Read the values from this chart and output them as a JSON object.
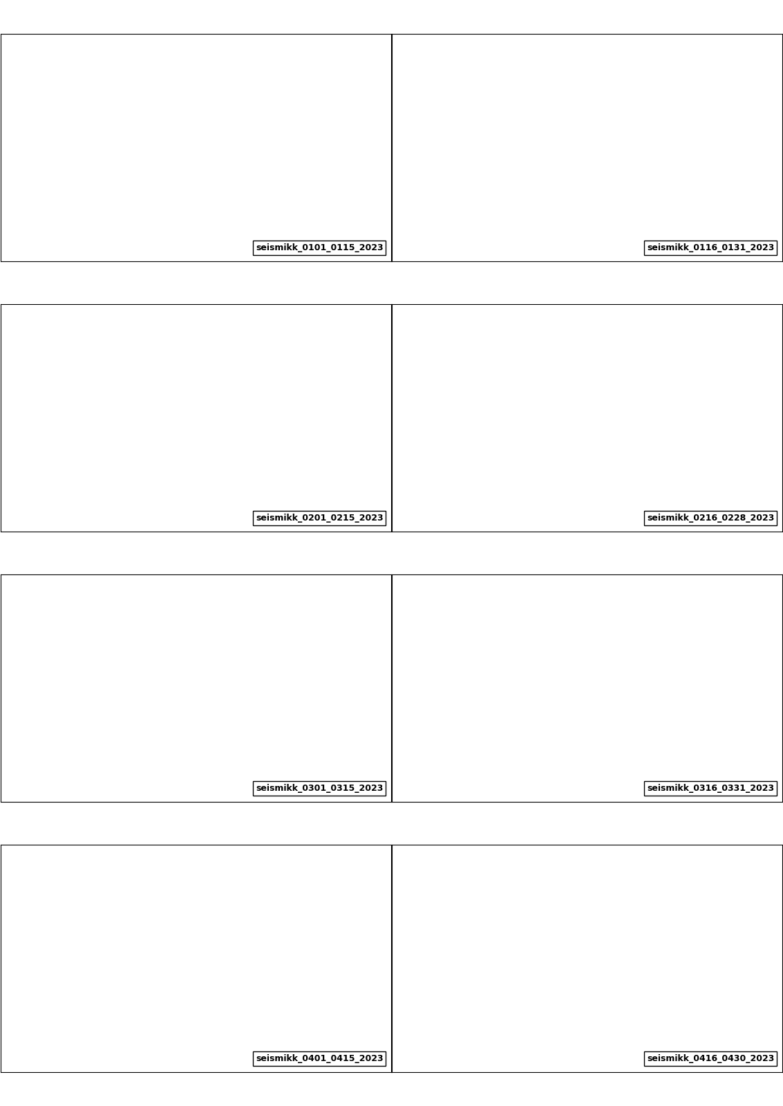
{
  "labels": [
    "seismikk_0101_0115_2023",
    "seismikk_0116_0131_2023",
    "seismikk_0201_0215_2023",
    "seismikk_0216_0228_2023",
    "seismikk_0301_0315_2023",
    "seismikk_0316_0331_2023",
    "seismikk_0401_0415_2023",
    "seismikk_0416_0430_2023"
  ],
  "nrows": 4,
  "ncols": 2,
  "map_extent": [
    -20,
    40,
    47,
    82
  ],
  "land_color": "#f5ddb5",
  "ocean_color": "#ffffff",
  "border_color": "#000000",
  "orange_color": "#e8692a",
  "orange_edge": "#8b3a00",
  "hatch_color": "#aaaaaa",
  "label_fontsize": 9,
  "label_bg": "#ffffff",
  "figsize": [
    11.33,
    16.0
  ],
  "dpi": 100
}
